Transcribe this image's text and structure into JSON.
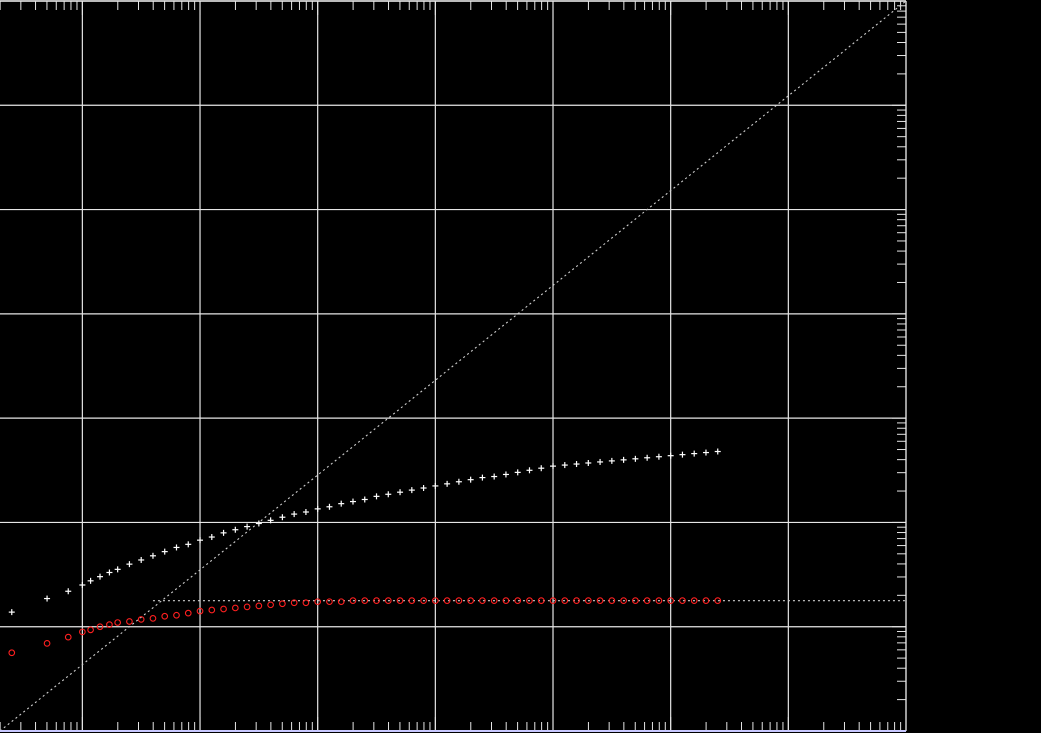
{
  "chart_data": {
    "type": "scatter",
    "x_scale": "log",
    "y_scale": "log",
    "xlim_decades": [
      -0.7,
      7.0
    ],
    "ylim_decades": [
      0.0,
      7.0
    ],
    "grid": true,
    "grid_color": "#e6e6e6",
    "background": "#000000",
    "frame_color": "#c8c8ff",
    "reference_lines": [
      {
        "name": "diagonal",
        "style": "dotted",
        "color": "#cfcfcf",
        "x_decade": [
          -0.7,
          7.0
        ],
        "y_decade": [
          0.0,
          7.0
        ]
      },
      {
        "name": "plateau",
        "style": "dotted",
        "color": "#cfcfcf",
        "x_decade": [
          0.6,
          7.0
        ],
        "y_decade": [
          1.25,
          1.25
        ]
      }
    ],
    "series": [
      {
        "marker": "plus",
        "color": "#ffffff",
        "points": [
          [
            -0.6,
            1.14
          ],
          [
            -0.3,
            1.27
          ],
          [
            -0.12,
            1.34
          ],
          [
            0.0,
            1.4
          ],
          [
            0.07,
            1.44
          ],
          [
            0.15,
            1.48
          ],
          [
            0.23,
            1.52
          ],
          [
            0.3,
            1.55
          ],
          [
            0.4,
            1.6
          ],
          [
            0.5,
            1.64
          ],
          [
            0.6,
            1.68
          ],
          [
            0.7,
            1.72
          ],
          [
            0.8,
            1.76
          ],
          [
            0.9,
            1.79
          ],
          [
            1.0,
            1.83
          ],
          [
            1.1,
            1.86
          ],
          [
            1.2,
            1.9
          ],
          [
            1.3,
            1.93
          ],
          [
            1.4,
            1.96
          ],
          [
            1.5,
            1.99
          ],
          [
            1.6,
            2.02
          ],
          [
            1.7,
            2.05
          ],
          [
            1.8,
            2.08
          ],
          [
            1.9,
            2.1
          ],
          [
            2.0,
            2.13
          ],
          [
            2.1,
            2.15
          ],
          [
            2.2,
            2.18
          ],
          [
            2.3,
            2.2
          ],
          [
            2.4,
            2.22
          ],
          [
            2.5,
            2.25
          ],
          [
            2.6,
            2.27
          ],
          [
            2.7,
            2.29
          ],
          [
            2.8,
            2.31
          ],
          [
            2.9,
            2.33
          ],
          [
            3.0,
            2.35
          ],
          [
            3.1,
            2.37
          ],
          [
            3.2,
            2.39
          ],
          [
            3.3,
            2.41
          ],
          [
            3.4,
            2.43
          ],
          [
            3.5,
            2.44
          ],
          [
            3.6,
            2.46
          ],
          [
            3.7,
            2.48
          ],
          [
            3.8,
            2.5
          ],
          [
            3.9,
            2.52
          ],
          [
            4.0,
            2.54
          ],
          [
            4.1,
            2.55
          ],
          [
            4.2,
            2.56
          ],
          [
            4.3,
            2.57
          ],
          [
            4.4,
            2.58
          ],
          [
            4.5,
            2.59
          ],
          [
            4.6,
            2.6
          ],
          [
            4.7,
            2.61
          ],
          [
            4.8,
            2.62
          ],
          [
            4.9,
            2.63
          ],
          [
            5.0,
            2.64
          ],
          [
            5.1,
            2.65
          ],
          [
            5.2,
            2.66
          ],
          [
            5.3,
            2.67
          ],
          [
            5.4,
            2.68
          ]
        ]
      },
      {
        "marker": "circle",
        "color": "#ff2020",
        "points": [
          [
            -0.6,
            0.75
          ],
          [
            -0.3,
            0.84
          ],
          [
            -0.12,
            0.9
          ],
          [
            0.0,
            0.95
          ],
          [
            0.07,
            0.97
          ],
          [
            0.15,
            1.0
          ],
          [
            0.23,
            1.02
          ],
          [
            0.3,
            1.04
          ],
          [
            0.4,
            1.05
          ],
          [
            0.5,
            1.07
          ],
          [
            0.6,
            1.08
          ],
          [
            0.7,
            1.1
          ],
          [
            0.8,
            1.11
          ],
          [
            0.9,
            1.13
          ],
          [
            1.0,
            1.15
          ],
          [
            1.1,
            1.16
          ],
          [
            1.2,
            1.17
          ],
          [
            1.3,
            1.18
          ],
          [
            1.4,
            1.19
          ],
          [
            1.5,
            1.2
          ],
          [
            1.6,
            1.21
          ],
          [
            1.7,
            1.22
          ],
          [
            1.8,
            1.23
          ],
          [
            1.9,
            1.23
          ],
          [
            2.0,
            1.24
          ],
          [
            2.1,
            1.24
          ],
          [
            2.2,
            1.24
          ],
          [
            2.3,
            1.25
          ],
          [
            2.4,
            1.25
          ],
          [
            2.5,
            1.25
          ],
          [
            2.6,
            1.25
          ],
          [
            2.7,
            1.25
          ],
          [
            2.8,
            1.25
          ],
          [
            2.9,
            1.25
          ],
          [
            3.0,
            1.25
          ],
          [
            3.1,
            1.25
          ],
          [
            3.2,
            1.25
          ],
          [
            3.3,
            1.25
          ],
          [
            3.4,
            1.25
          ],
          [
            3.5,
            1.25
          ],
          [
            3.6,
            1.25
          ],
          [
            3.7,
            1.25
          ],
          [
            3.8,
            1.25
          ],
          [
            3.9,
            1.25
          ],
          [
            4.0,
            1.25
          ],
          [
            4.1,
            1.25
          ],
          [
            4.2,
            1.25
          ],
          [
            4.3,
            1.25
          ],
          [
            4.4,
            1.25
          ],
          [
            4.5,
            1.25
          ],
          [
            4.6,
            1.25
          ],
          [
            4.7,
            1.25
          ],
          [
            4.8,
            1.25
          ],
          [
            4.9,
            1.25
          ],
          [
            5.0,
            1.25
          ],
          [
            5.1,
            1.25
          ],
          [
            5.2,
            1.25
          ],
          [
            5.3,
            1.25
          ],
          [
            5.4,
            1.25
          ]
        ]
      }
    ]
  }
}
